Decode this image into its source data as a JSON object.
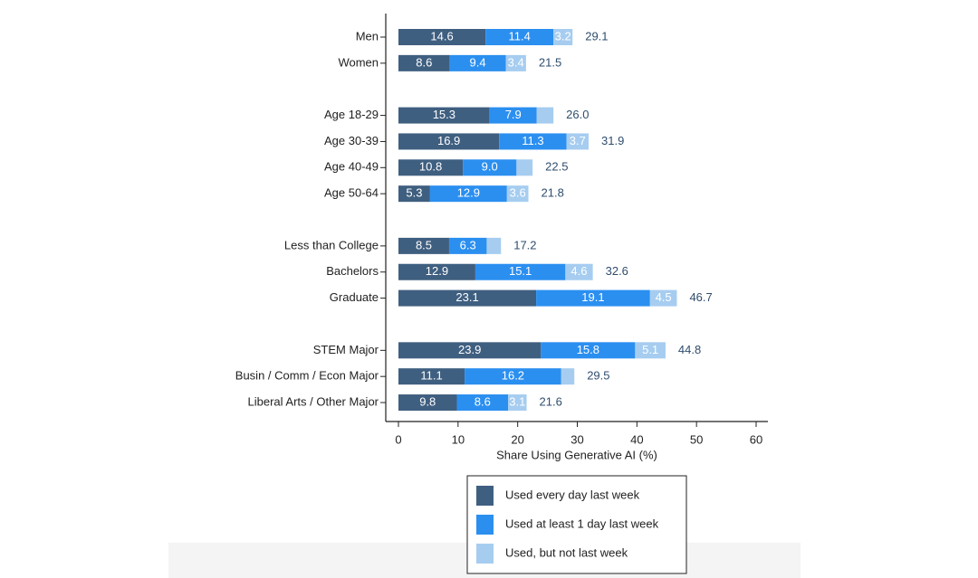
{
  "chart_data": {
    "type": "stacked-barh",
    "categories": [
      "Men",
      "Women",
      null,
      "Age 18-29",
      "Age 30-39",
      "Age 40-49",
      "Age 50-64",
      null,
      "Less than College",
      "Bachelors",
      "Graduate",
      null,
      "STEM Major",
      "Busin / Comm / Econ Major",
      "Liberal Arts / Other Major"
    ],
    "series": [
      {
        "name": "Used every day last week",
        "color": "#3f5f80",
        "values": [
          14.6,
          8.6,
          null,
          15.3,
          16.9,
          10.8,
          5.3,
          null,
          8.5,
          12.9,
          23.1,
          null,
          23.9,
          11.1,
          9.8
        ],
        "value_labels": [
          "14.6",
          "8.6",
          null,
          "15.3",
          "16.9",
          "10.8",
          "5.3",
          null,
          "8.5",
          "12.9",
          "23.1",
          null,
          "23.9",
          "11.1",
          "9.8"
        ]
      },
      {
        "name": "Used at least 1 day last week",
        "color": "#2b8ff0",
        "values": [
          11.4,
          9.4,
          null,
          7.9,
          11.3,
          9.0,
          12.9,
          null,
          6.3,
          15.1,
          19.1,
          null,
          15.8,
          16.2,
          8.6
        ],
        "value_labels": [
          "11.4",
          "9.4",
          null,
          "7.9",
          "11.3",
          "9.0",
          "12.9",
          null,
          "6.3",
          "15.1",
          "19.1",
          null,
          "15.8",
          "16.2",
          "8.6"
        ]
      },
      {
        "name": "Used, but not last week",
        "color": "#a6cdf0",
        "values": [
          3.2,
          3.4,
          null,
          2.8,
          3.7,
          2.7,
          3.6,
          null,
          2.4,
          4.6,
          4.5,
          null,
          5.1,
          2.2,
          3.1
        ],
        "value_labels": [
          "3.2",
          "3.4",
          null,
          null,
          "3.7",
          null,
          "3.6",
          null,
          null,
          "4.6",
          "4.5",
          null,
          "5.1",
          null,
          "3.1"
        ]
      }
    ],
    "totals": {
      "values": [
        29.1,
        21.5,
        null,
        26.0,
        31.9,
        22.5,
        21.8,
        null,
        17.2,
        32.6,
        46.7,
        null,
        44.8,
        29.5,
        21.6
      ],
      "value_labels": [
        "29.1",
        "21.5",
        null,
        "26.0",
        "31.9",
        "22.5",
        "21.8",
        null,
        "17.2",
        "32.6",
        "46.7",
        null,
        "44.8",
        "29.5",
        "21.6"
      ]
    },
    "xlabel": "Share Using Generative AI (%)",
    "xlim": [
      0,
      60
    ],
    "xticks": [
      0,
      10,
      20,
      30,
      40,
      50,
      60
    ],
    "legend": "bottom"
  }
}
